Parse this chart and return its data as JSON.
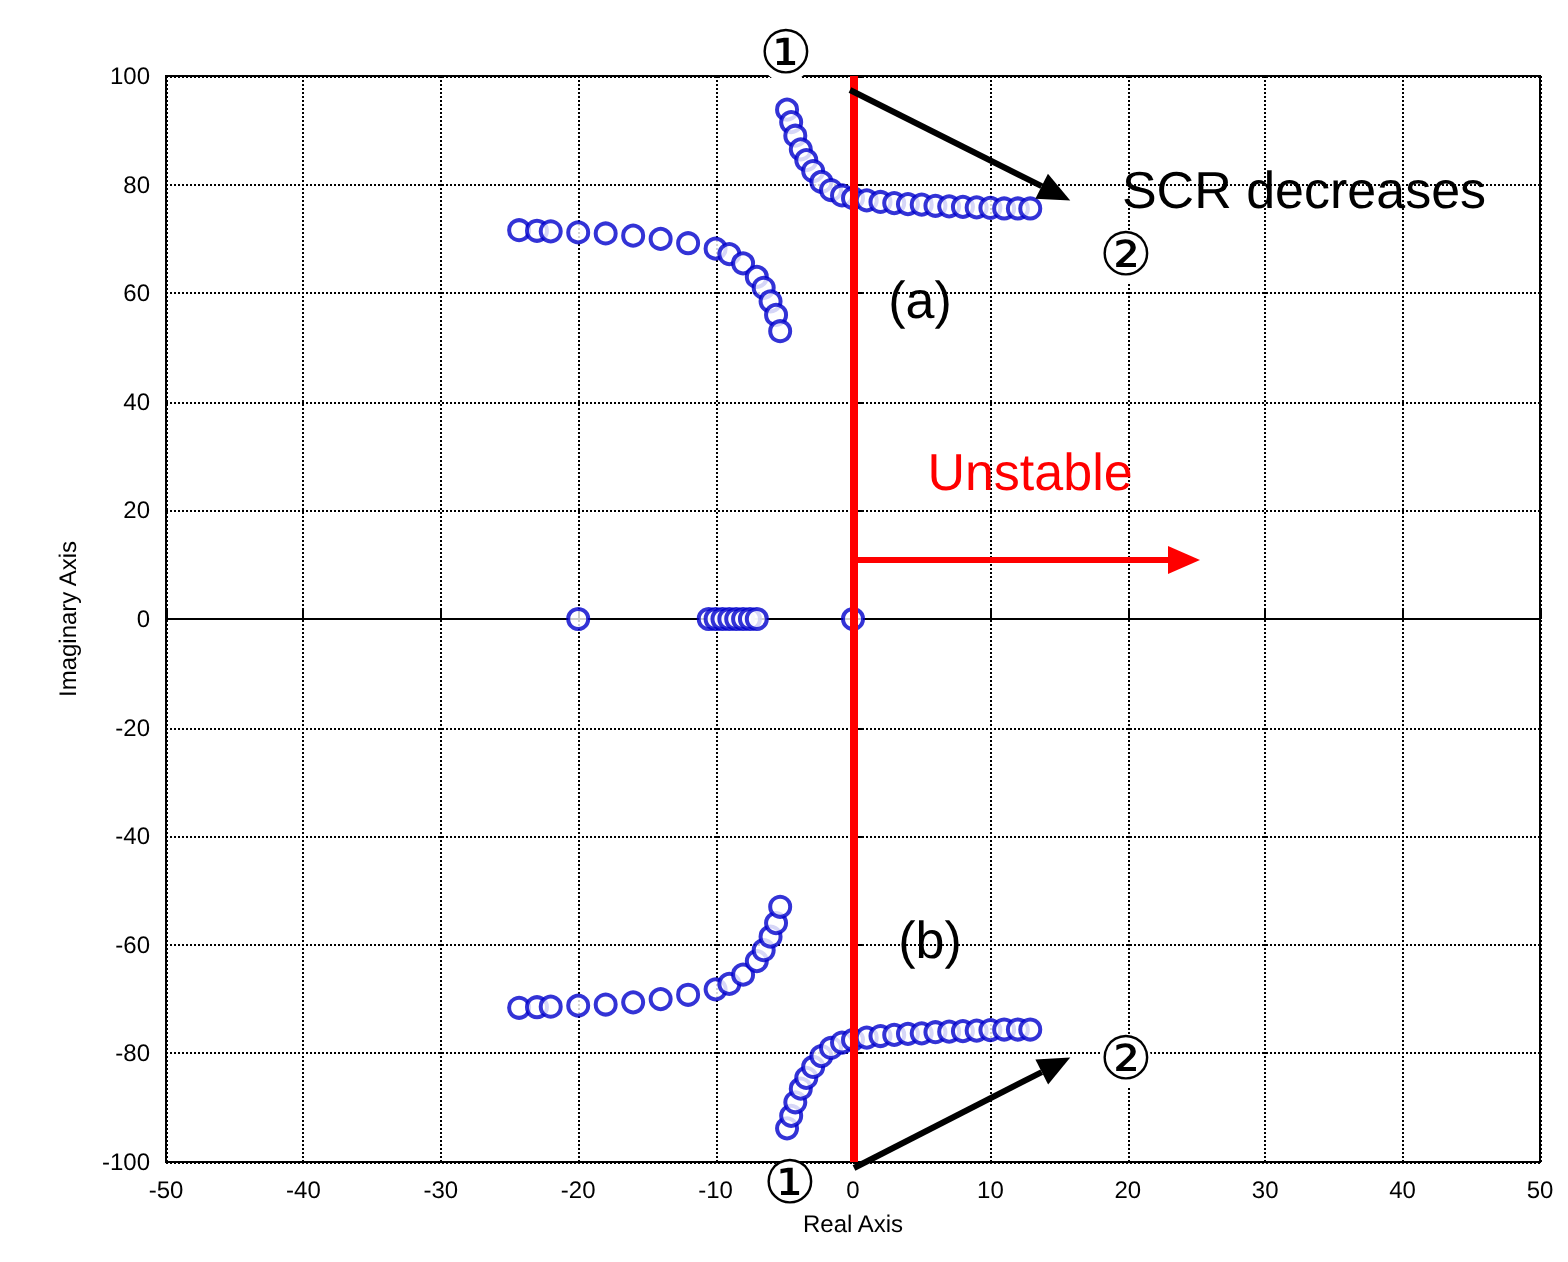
{
  "chart_data": {
    "type": "scatter",
    "xlabel": "Real Axis",
    "ylabel": "Imaginary Axis",
    "xlim": [
      -50,
      50
    ],
    "xticks": [
      -50,
      -40,
      -30,
      -20,
      -10,
      0,
      10,
      20,
      30,
      40,
      50
    ],
    "ylim": [
      -100,
      100
    ],
    "yticks": [
      -100,
      -80,
      -60,
      -40,
      -20,
      0,
      20,
      40,
      60,
      80,
      100
    ],
    "grid": true,
    "marker": "circle",
    "series": [
      {
        "color": "#0000cc",
        "x": [
          -4.8,
          -4.5,
          -4.2,
          -3.8,
          -3.4,
          -2.9,
          -2.3,
          -1.6,
          -0.8,
          0,
          1,
          2,
          3,
          4,
          5,
          6,
          7,
          8,
          9,
          10,
          11,
          12,
          12.9,
          -24.3,
          -23,
          -22,
          -20,
          -18,
          -16,
          -14,
          -12,
          -10,
          -9,
          -8,
          -7,
          -6.5,
          -6,
          -5.6,
          -5.3,
          -4.8,
          -4.5,
          -4.2,
          -3.8,
          -3.4,
          -2.9,
          -2.3,
          -1.6,
          -0.8,
          0,
          1,
          2,
          3,
          4,
          5,
          6,
          7,
          8,
          9,
          10,
          11,
          12,
          12.9,
          -24.3,
          -23,
          -22,
          -20,
          -18,
          -16,
          -14,
          -12,
          -10,
          -9,
          -8,
          -7,
          -6.5,
          -6,
          -5.6,
          -5.3,
          -20,
          0,
          -10.5,
          -10,
          -9.5,
          -9,
          -8.5,
          -8,
          -7.5,
          -7
        ],
        "values": [
          93.8,
          91.5,
          89,
          86.5,
          84.5,
          82.5,
          80.5,
          79,
          78,
          77.5,
          77.1,
          76.8,
          76.6,
          76.4,
          76.3,
          76.1,
          76,
          75.9,
          75.8,
          75.7,
          75.6,
          75.6,
          75.6,
          71.6,
          71.5,
          71.4,
          71.2,
          71,
          70.6,
          70,
          69.2,
          68.2,
          67.2,
          65.5,
          63,
          61,
          58.5,
          56,
          53,
          -93.8,
          -91.5,
          -89,
          -86.5,
          -84.5,
          -82.5,
          -80.5,
          -79,
          -78,
          -77.5,
          -77.1,
          -76.8,
          -76.6,
          -76.4,
          -76.3,
          -76.1,
          -76,
          -75.9,
          -75.8,
          -75.7,
          -75.6,
          -75.6,
          -75.6,
          -71.6,
          -71.5,
          -71.4,
          -71.2,
          -71,
          -70.6,
          -70,
          -69.2,
          -68.2,
          -67.2,
          -65.5,
          -63,
          -61,
          -58.5,
          -56,
          -53,
          0,
          0,
          0,
          0,
          0,
          0,
          0,
          0,
          0,
          0
        ]
      }
    ],
    "ref_lines": [
      {
        "axis": "x",
        "value": 0,
        "color": "#ff0000"
      }
    ],
    "annotations": [
      "①",
      {
        "text": "②",
        "x": 12.9,
        "y": 75.6
      },
      "SCR decreases",
      "(a)",
      "Unstable",
      "(b)",
      {
        "text": "②",
        "x": 12.9,
        "y": -75.6
      },
      "①"
    ]
  }
}
